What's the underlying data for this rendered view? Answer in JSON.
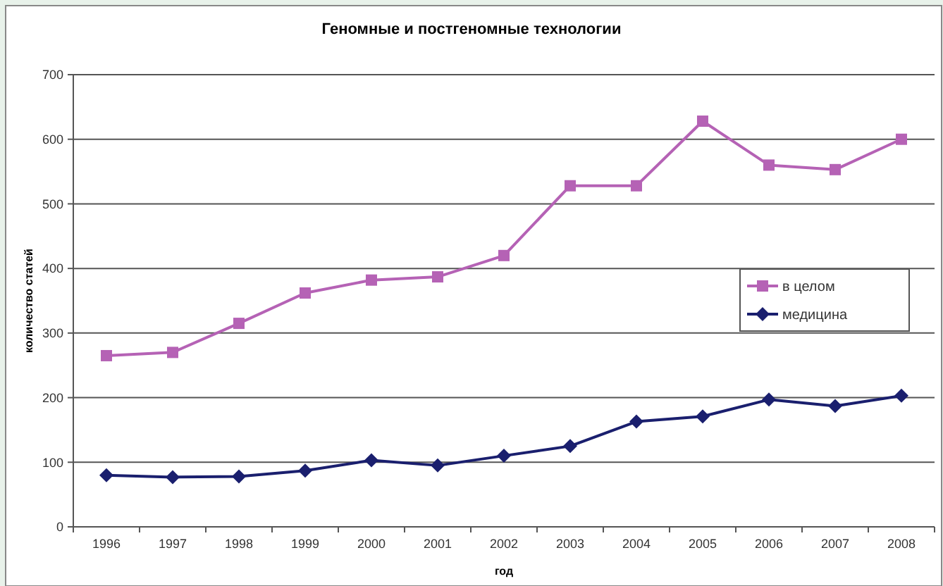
{
  "chart_data": {
    "type": "line",
    "title": "Геномные и постгеномные технологии",
    "xlabel": "год",
    "ylabel": "количество статей",
    "categories": [
      "1996",
      "1997",
      "1998",
      "1999",
      "2000",
      "2001",
      "2002",
      "2003",
      "2004",
      "2005",
      "2006",
      "2007",
      "2008"
    ],
    "series": [
      {
        "name": "в целом",
        "color": "#b562b5",
        "marker": "square",
        "values": [
          265,
          270,
          315,
          362,
          382,
          387,
          420,
          528,
          528,
          628,
          560,
          553,
          600
        ]
      },
      {
        "name": "медицина",
        "color": "#1a1f6e",
        "marker": "diamond",
        "values": [
          80,
          77,
          78,
          87,
          103,
          95,
          110,
          125,
          163,
          171,
          197,
          187,
          203
        ]
      }
    ],
    "ylim": [
      0,
      700
    ],
    "yticks": [
      0,
      100,
      200,
      300,
      400,
      500,
      600,
      700
    ],
    "grid": "y",
    "legend": "right",
    "line_style": "solid"
  }
}
